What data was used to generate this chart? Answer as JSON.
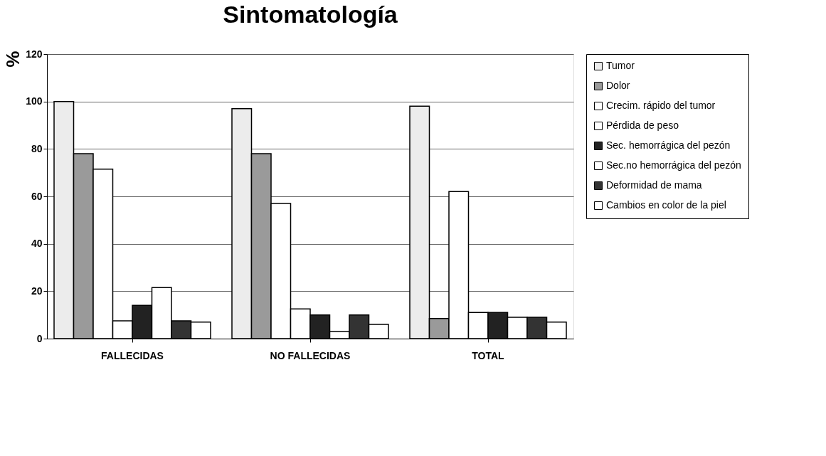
{
  "chart_data": {
    "type": "bar",
    "title": "Sintomatología",
    "ylabel": "%",
    "categories": [
      "FALLECIDAS",
      "NO FALLECIDAS",
      "TOTAL"
    ],
    "series": [
      {
        "name": "Tumor",
        "color": "#ececec",
        "values": [
          100,
          97,
          98
        ]
      },
      {
        "name": "Dolor",
        "color": "#9a9a9a",
        "values": [
          78,
          78,
          8.5
        ]
      },
      {
        "name": "Crecim. rápido del tumor",
        "color": "#ffffff",
        "values": [
          71.5,
          57,
          62
        ]
      },
      {
        "name": "Pérdida de peso",
        "color": "#ffffff",
        "values": [
          7.5,
          12.5,
          11
        ]
      },
      {
        "name": "Sec. hemorrágica del pezón",
        "color": "#222222",
        "values": [
          14,
          10,
          11
        ]
      },
      {
        "name": "Sec.no hemorrágica del pezón",
        "color": "#ffffff",
        "values": [
          21.5,
          3,
          9
        ]
      },
      {
        "name": "Deformidad de mama",
        "color": "#333333",
        "values": [
          7.5,
          10,
          9
        ]
      },
      {
        "name": "Cambios en color de la piel",
        "color": "#ffffff",
        "values": [
          7,
          6,
          7
        ]
      }
    ],
    "ylim": [
      0,
      120
    ],
    "yticks": [
      0,
      20,
      40,
      60,
      80,
      100,
      120
    ],
    "grid": "y",
    "legend": "right"
  }
}
